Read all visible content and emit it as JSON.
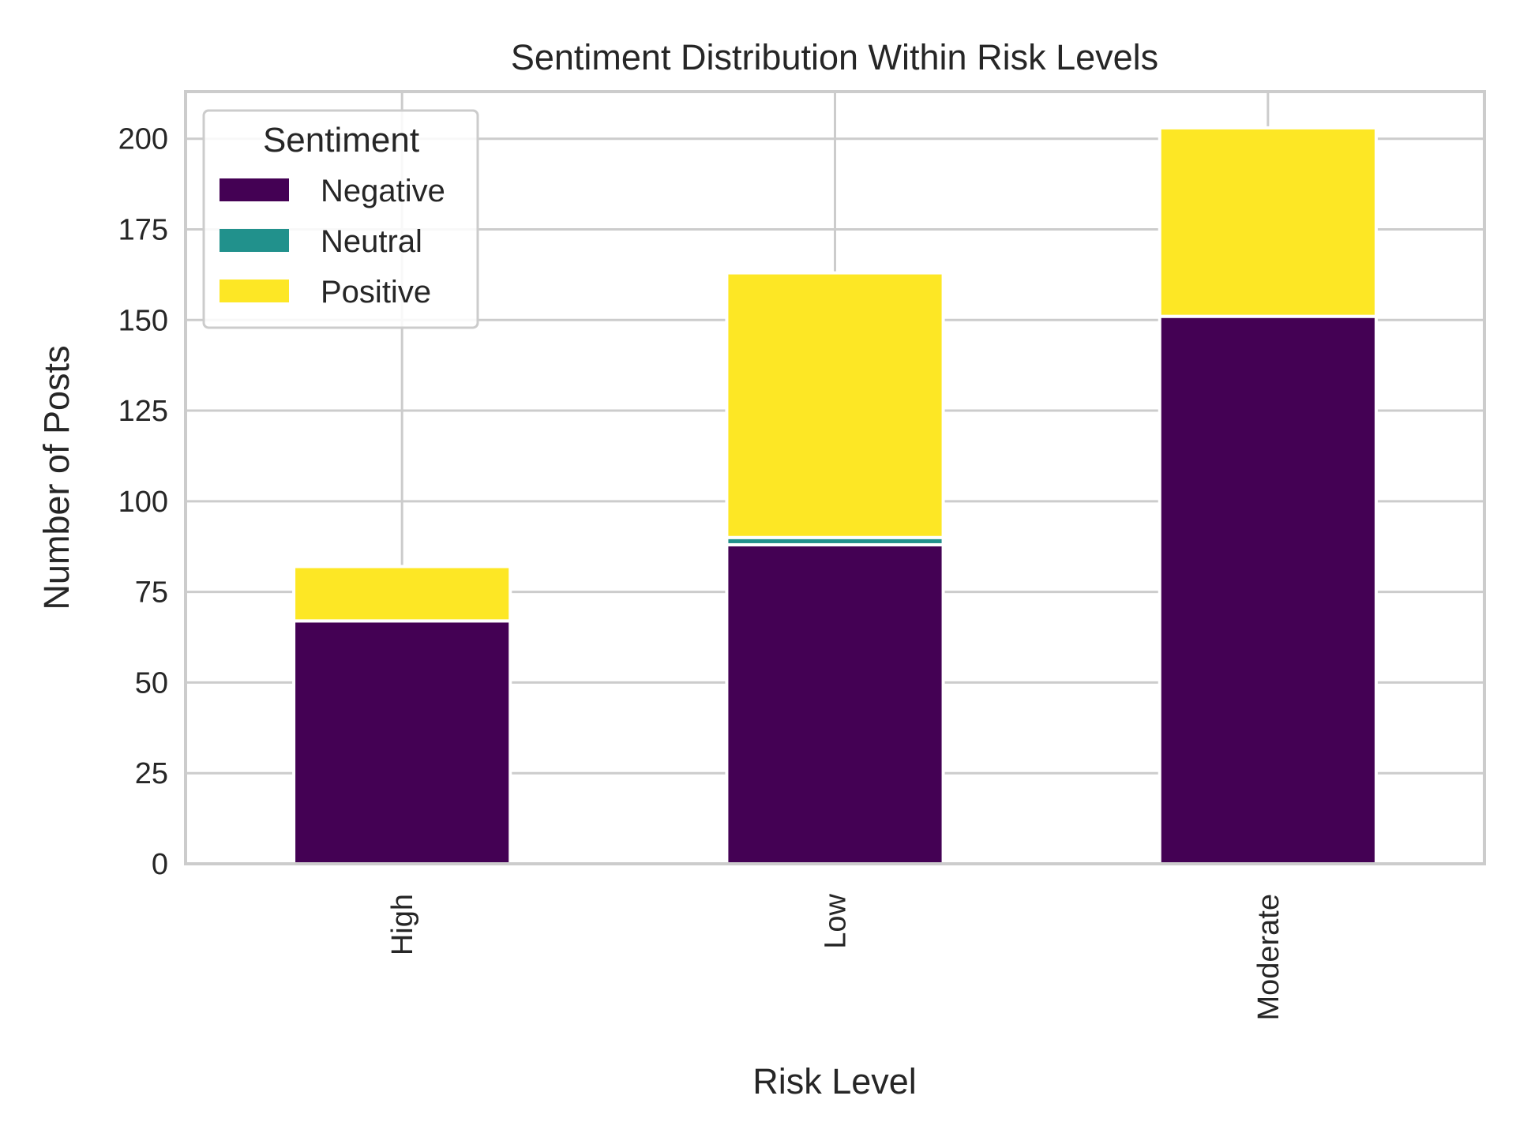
{
  "chart_data": {
    "type": "bar",
    "stacked": true,
    "title": "Sentiment Distribution Within Risk Levels",
    "xlabel": "Risk Level",
    "ylabel": "Number of Posts",
    "categories": [
      "High",
      "Low",
      "Moderate"
    ],
    "series": [
      {
        "name": "Negative",
        "color": "#440154",
        "values": [
          67,
          88,
          151
        ]
      },
      {
        "name": "Neutral",
        "color": "#21918c",
        "values": [
          0,
          2,
          0
        ]
      },
      {
        "name": "Positive",
        "color": "#fde725",
        "values": [
          15,
          73,
          52
        ]
      }
    ],
    "ylim": [
      0,
      213
    ],
    "yticks": [
      0,
      25,
      50,
      75,
      100,
      125,
      150,
      175,
      200
    ],
    "grid": true,
    "x_tick_rotation": "vertical",
    "legend": {
      "title": "Sentiment",
      "position": "top-left"
    }
  }
}
